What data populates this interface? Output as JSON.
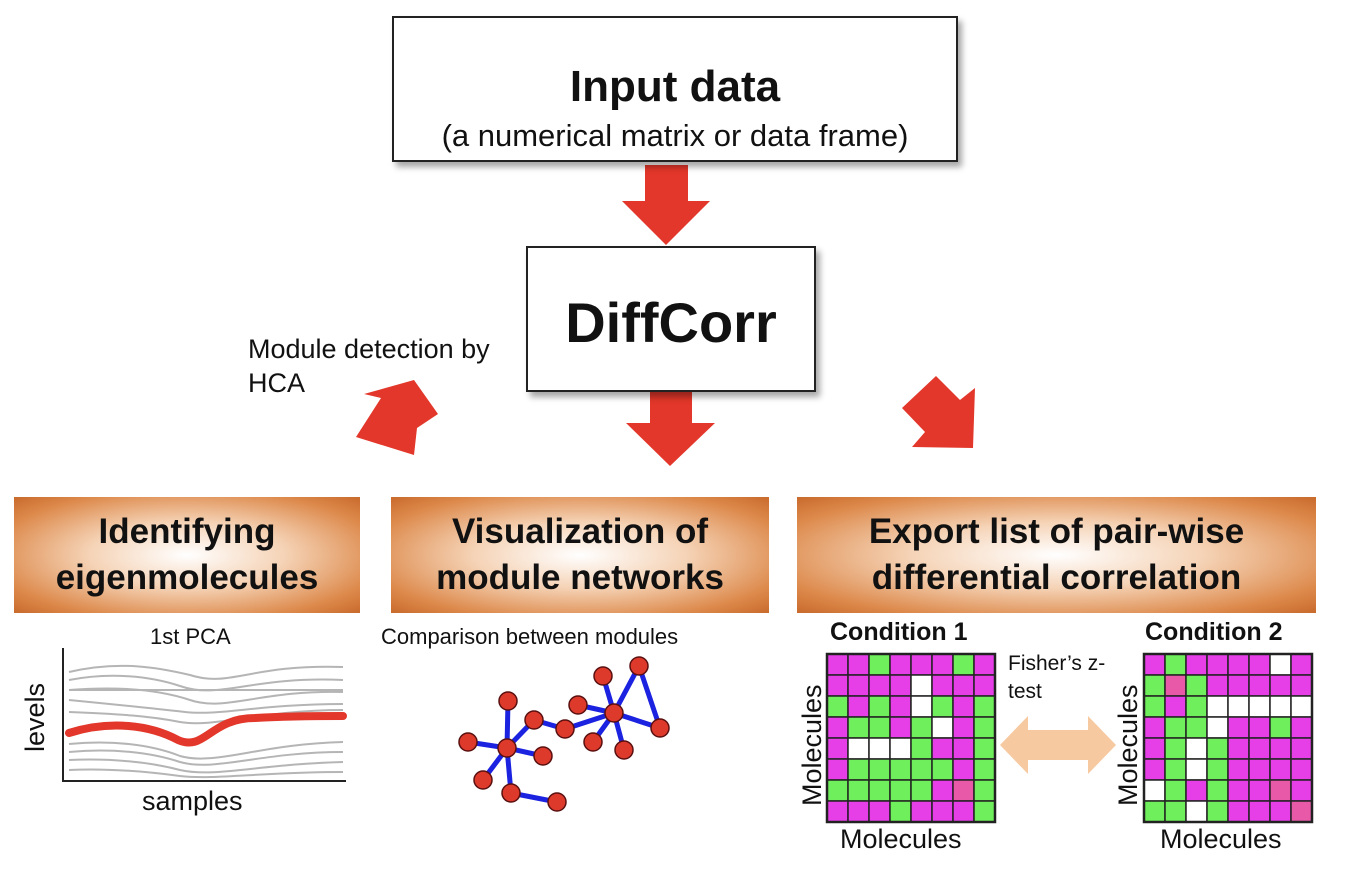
{
  "input": {
    "title": "Input data",
    "subtitle": "(a numerical matrix or data frame)"
  },
  "diffcorr": {
    "title": "DiffCorr"
  },
  "hca_label": "Module detection by HCA",
  "banners": [
    {
      "line1": "Identifying",
      "line2": "eigenmolecules"
    },
    {
      "line1": "Visualization of",
      "line2": "module networks"
    },
    {
      "line1": "Export list of pair-wise",
      "line2": "differential correlation"
    }
  ],
  "pca": {
    "title": "1st PCA",
    "xlabel": "samples",
    "ylabel": "levels"
  },
  "network": {
    "title": "Comparison between modules"
  },
  "matrices": {
    "cond1": "Condition 1",
    "cond2": "Condition 2",
    "test_label": "Fisher’s z-test",
    "axis_label": "Molecules"
  },
  "colors": {
    "arrow": "#e2372a",
    "magenta": "#e63fe8",
    "green": "#6fef5b",
    "white": "#ffffff",
    "pink": "#e85aa8",
    "network_edge": "#1b22e0",
    "network_node": "#de3a2c",
    "pca_line": "#e2372a",
    "double_arrow": "#f6c9a0"
  },
  "grid1": [
    "MMGMMMGM",
    "MMMMWMMM",
    "GMGMWGMG",
    "MGGMGWMG",
    "MWWWGMMG",
    "MGGGGGMG",
    "GGGGGMPG",
    "MMMGMMMG"
  ],
  "grid2": [
    "MGMMMMWM",
    "GPGMMMMM",
    "GMGWWWWW",
    "MGGWMMGM",
    "MGWGMMMM",
    "MGWGMMMM",
    "WGMGMMPM",
    "GGWGMMMP"
  ]
}
